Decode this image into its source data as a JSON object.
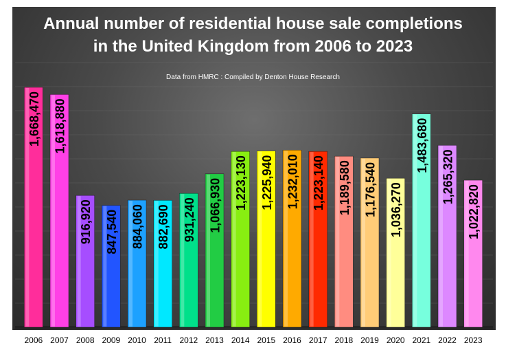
{
  "chart_data": {
    "type": "bar",
    "title_line1": "Annual number of residential house sale completions",
    "title_line2": "in the United Kingdom from 2006 to 2023",
    "subtitle": "Data from HMRC : Compiled by Denton House Research",
    "xlabel": "",
    "ylabel": "",
    "ylim": [
      0,
      1800000
    ],
    "categories": [
      "2006",
      "2007",
      "2008",
      "2009",
      "2010",
      "2011",
      "2012",
      "2013",
      "2014",
      "2015",
      "2016",
      "2017",
      "2018",
      "2019",
      "2020",
      "2021",
      "2022",
      "2023"
    ],
    "values": [
      1668470,
      1618880,
      916920,
      847540,
      884060,
      882690,
      931240,
      1066930,
      1223130,
      1225940,
      1232010,
      1223140,
      1189580,
      1176540,
      1036270,
      1483680,
      1265320,
      1022820
    ],
    "labels": [
      "1,668,470",
      "1,618,880",
      "916,920",
      "847,540",
      "884,060",
      "882,690",
      "931,240",
      "1,066,930",
      "1,223,130",
      "1,225,940",
      "1,232,010",
      "1,223,140",
      "1,189,580",
      "1,176,540",
      "1,036,270",
      "1,483,680",
      "1,265,320",
      "1,022,820"
    ],
    "colors": [
      "#ff2d9b",
      "#ff40e6",
      "#a64dff",
      "#2255ff",
      "#1da1ff",
      "#00e8ff",
      "#00e08a",
      "#22cc44",
      "#88ee11",
      "#ffff00",
      "#ffaa00",
      "#ff2a00",
      "#ff8c80",
      "#ffcc77",
      "#ffff99",
      "#77ffdd",
      "#dd88ff",
      "#ff88ee"
    ],
    "grid": true
  }
}
